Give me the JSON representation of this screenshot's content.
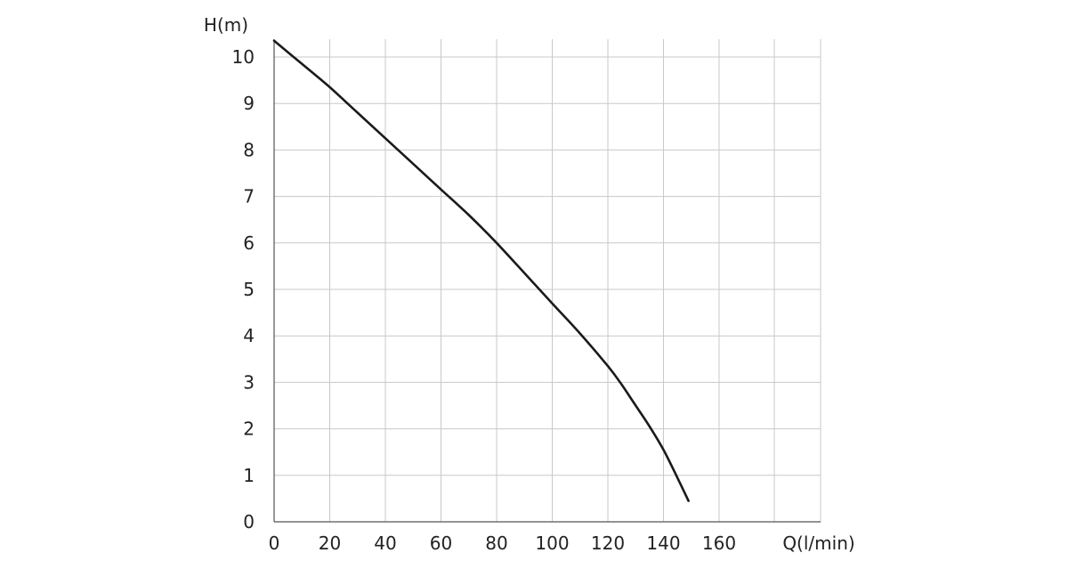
{
  "chart_data": {
    "type": "line",
    "title": "",
    "xlabel": "Q(l/min)",
    "ylabel": "H(m)",
    "xlim": [
      0,
      170
    ],
    "ylim": [
      0,
      10.4
    ],
    "x_ticks": [
      0,
      20,
      40,
      60,
      80,
      100,
      120,
      140,
      160
    ],
    "y_ticks": [
      0,
      1,
      2,
      3,
      4,
      5,
      6,
      7,
      8,
      9,
      10
    ],
    "grid": true,
    "series": [
      {
        "x": [
          0,
          10,
          20,
          30,
          40,
          50,
          60,
          70,
          80,
          90,
          100,
          110,
          120,
          125,
          130,
          135,
          140,
          145,
          149
        ],
        "y": [
          10.35,
          9.85,
          9.35,
          8.8,
          8.25,
          7.7,
          7.15,
          6.6,
          6.0,
          5.35,
          4.7,
          4.05,
          3.35,
          2.95,
          2.5,
          2.05,
          1.55,
          0.95,
          0.45
        ]
      }
    ],
    "colors": {
      "line": "#1a1a1a",
      "grid": "#c8c8c8",
      "text": "#222222"
    }
  }
}
